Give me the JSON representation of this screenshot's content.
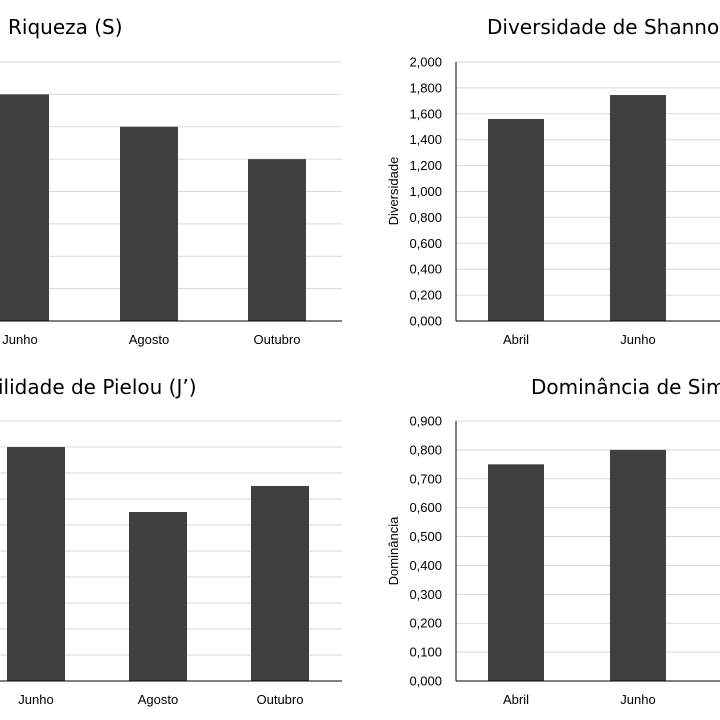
{
  "chart_data": [
    {
      "type": "bar",
      "title": "Riqueza (S)",
      "ylabel": "",
      "categories": [
        "Junho",
        "Agosto",
        "Outubro"
      ],
      "values": [
        7,
        6,
        5
      ],
      "ylim": [
        0,
        8
      ],
      "bar_color": "#404040",
      "grid": true
    },
    {
      "type": "bar",
      "title": "Diversidade de Shannon-",
      "ylabel": "Diversidade",
      "categories": [
        "Abril",
        "Junho"
      ],
      "values": [
        1.56,
        1.745
      ],
      "ylim": [
        0,
        2
      ],
      "yticks": [
        "0,000",
        "0,200",
        "0,400",
        "0,600",
        "0,800",
        "1,000",
        "1,200",
        "1,400",
        "1,600",
        "1,800",
        "2,000"
      ],
      "bar_color": "#404040",
      "grid": true
    },
    {
      "type": "bar",
      "title": "ilidade de Pielou (J’)",
      "ylabel": "",
      "categories": [
        "Junho",
        "Agosto",
        "Outubro"
      ],
      "values": [
        0.9,
        0.65,
        0.75
      ],
      "ylim": [
        0,
        1
      ],
      "bar_color": "#404040",
      "grid": true
    },
    {
      "type": "bar",
      "title": "Dominância de Simp",
      "ylabel": "Dominância",
      "categories": [
        "Abril",
        "Junho"
      ],
      "values": [
        0.75,
        0.8
      ],
      "ylim": [
        0,
        0.9
      ],
      "yticks": [
        "0,000",
        "0,100",
        "0,200",
        "0,300",
        "0,400",
        "0,500",
        "0,600",
        "0,700",
        "0,800",
        "0,900"
      ],
      "bar_color": "#404040",
      "grid": true
    }
  ]
}
